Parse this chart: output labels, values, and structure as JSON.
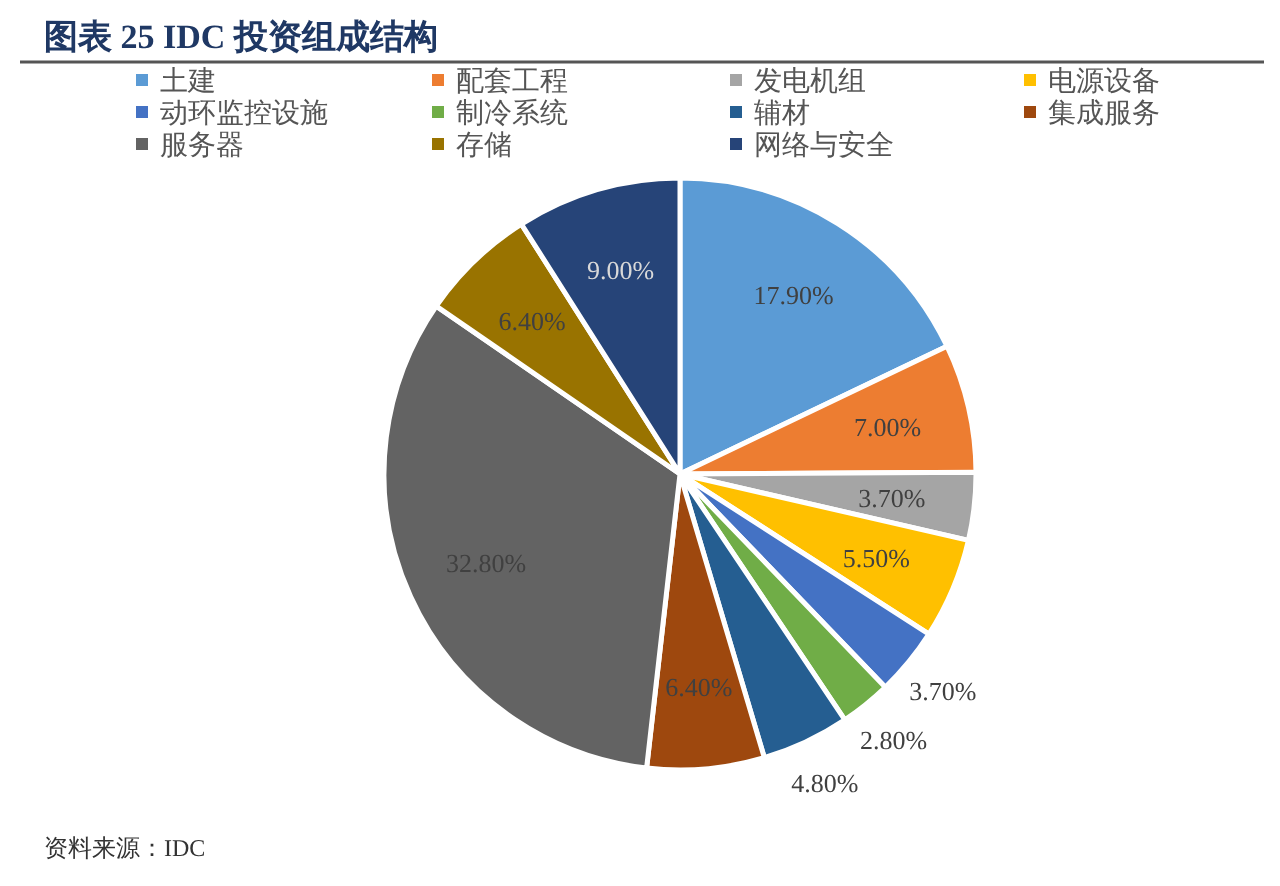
{
  "chart_data": {
    "type": "pie",
    "title": "图表 25 IDC 投资组成结构",
    "categories": [
      "土建",
      "配套工程",
      "发电机组",
      "电源设备",
      "动环监控设施",
      "制冷系统",
      "辅材",
      "集成服务",
      "服务器",
      "存储",
      "网络与安全"
    ],
    "values": [
      17.9,
      7.0,
      3.7,
      5.5,
      3.7,
      2.8,
      4.8,
      6.4,
      32.8,
      6.4,
      9.0
    ],
    "value_labels": [
      "17.90%",
      "7.00%",
      "3.70%",
      "5.50%",
      "3.70%",
      "2.80%",
      "4.80%",
      "6.40%",
      "32.80%",
      "6.40%",
      "9.00%"
    ],
    "colors": [
      "#5b9bd5",
      "#ed7d31",
      "#a5a5a5",
      "#ffc000",
      "#4472c4",
      "#70ad47",
      "#255e91",
      "#9e480e",
      "#636363",
      "#997300",
      "#264478"
    ],
    "legend": "top",
    "annotations": [
      "资料来源：IDC"
    ]
  }
}
